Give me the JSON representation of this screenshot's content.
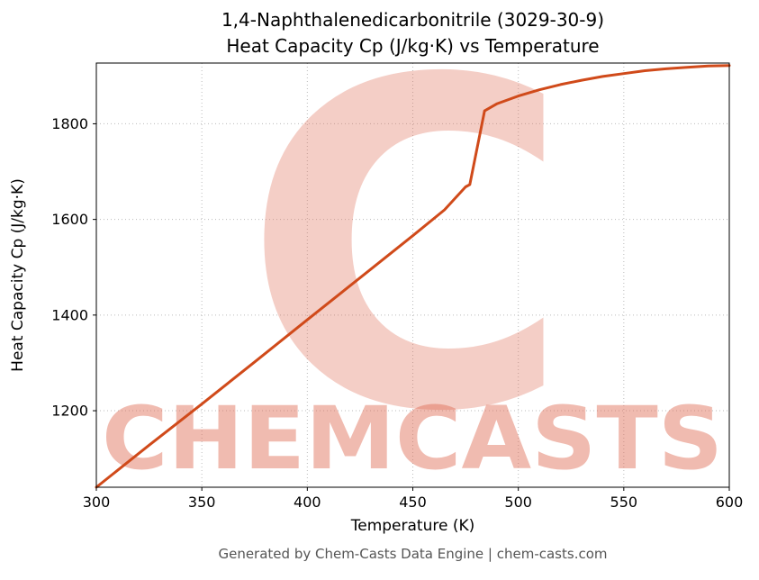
{
  "title_line1": "1,4-Naphthalenedicarbonitrile (3029-30-9)",
  "title_line2": "Heat Capacity Cp (J/kg·K) vs Temperature",
  "footer": "Generated by Chem-Casts Data Engine | chem-casts.com",
  "watermark": {
    "letter": "C",
    "text": "CHEMCASTS",
    "color": "#e06a52",
    "letter_opacity": 0.32,
    "text_opacity": 0.45
  },
  "chart_data": {
    "type": "line",
    "title": "1,4-Naphthalenedicarbonitrile (3029-30-9) Heat Capacity Cp (J/kg·K) vs Temperature",
    "xlabel": "Temperature (K)",
    "ylabel": "Heat Capacity Cp (J/kg·K)",
    "xlim": [
      300,
      600
    ],
    "ylim": [
      1040,
      1927
    ],
    "xticks": [
      300,
      350,
      400,
      450,
      500,
      550,
      600
    ],
    "yticks": [
      1200,
      1400,
      1600,
      1800
    ],
    "grid": true,
    "grid_style": "dotted",
    "grid_color": "#bbbbbb",
    "line_color": "#d04a1a",
    "line_width": 3,
    "legend": "none",
    "series": [
      {
        "name": "Heat Capacity Cp",
        "x": [
          300,
          325,
          350,
          375,
          400,
          425,
          450,
          465,
          475,
          477,
          484,
          490,
          500,
          510,
          520,
          530,
          540,
          550,
          560,
          570,
          580,
          590,
          600
        ],
        "y": [
          1040,
          1128,
          1214,
          1302,
          1390,
          1478,
          1566,
          1620,
          1668,
          1673,
          1827,
          1842,
          1858,
          1871,
          1882,
          1891,
          1899,
          1905,
          1911,
          1915,
          1918,
          1921,
          1922
        ]
      }
    ]
  }
}
